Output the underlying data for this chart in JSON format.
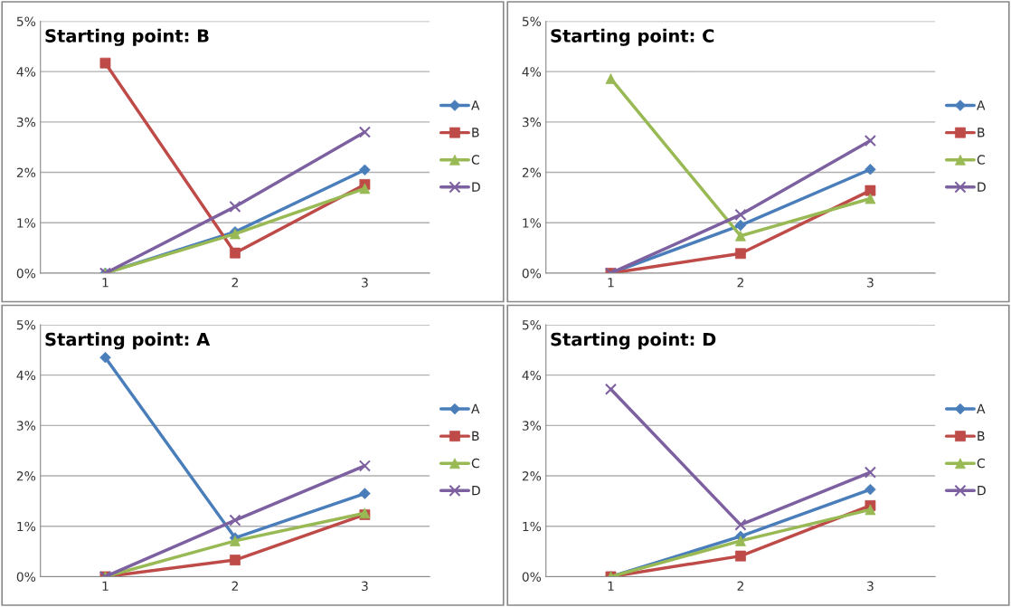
{
  "chart_data": [
    {
      "type": "line",
      "title": "Starting point: B",
      "categories": [
        "1",
        "2",
        "3"
      ],
      "ylim": [
        0,
        5
      ],
      "yticks": [
        {
          "value": 0,
          "label": "0%"
        },
        {
          "value": 1,
          "label": "1%"
        },
        {
          "value": 2,
          "label": "2%"
        },
        {
          "value": 3,
          "label": "3%"
        },
        {
          "value": 4,
          "label": "4%"
        },
        {
          "value": 5,
          "label": "5%"
        }
      ],
      "grid": "y",
      "legend": "right",
      "series": [
        {
          "name": "A",
          "color": "#4a7ebb",
          "marker": "diamond",
          "values": [
            0,
            0.82,
            2.05
          ]
        },
        {
          "name": "B",
          "color": "#be4b48",
          "marker": "square",
          "values": [
            4.17,
            0.4,
            1.76
          ]
        },
        {
          "name": "C",
          "color": "#98b954",
          "marker": "triangle",
          "values": [
            0,
            0.78,
            1.68
          ]
        },
        {
          "name": "D",
          "color": "#7d60a0",
          "marker": "cross",
          "values": [
            0,
            1.32,
            2.8
          ]
        }
      ]
    },
    {
      "type": "line",
      "title": "Starting point: C",
      "categories": [
        "1",
        "2",
        "3"
      ],
      "ylim": [
        0,
        5
      ],
      "yticks": [
        {
          "value": 0,
          "label": "0%"
        },
        {
          "value": 1,
          "label": "1%"
        },
        {
          "value": 2,
          "label": "2%"
        },
        {
          "value": 3,
          "label": "3%"
        },
        {
          "value": 4,
          "label": "4%"
        },
        {
          "value": 5,
          "label": "5%"
        }
      ],
      "grid": "y",
      "legend": "right",
      "series": [
        {
          "name": "A",
          "color": "#4a7ebb",
          "marker": "diamond",
          "values": [
            0,
            0.95,
            2.06
          ]
        },
        {
          "name": "B",
          "color": "#be4b48",
          "marker": "square",
          "values": [
            0,
            0.39,
            1.64
          ]
        },
        {
          "name": "C",
          "color": "#98b954",
          "marker": "triangle",
          "values": [
            3.86,
            0.74,
            1.48
          ]
        },
        {
          "name": "D",
          "color": "#7d60a0",
          "marker": "cross",
          "values": [
            0,
            1.16,
            2.63
          ]
        }
      ]
    },
    {
      "type": "line",
      "title": "Starting point: A",
      "categories": [
        "1",
        "2",
        "3"
      ],
      "ylim": [
        0,
        5
      ],
      "yticks": [
        {
          "value": 0,
          "label": "0%"
        },
        {
          "value": 1,
          "label": "1%"
        },
        {
          "value": 2,
          "label": "2%"
        },
        {
          "value": 3,
          "label": "3%"
        },
        {
          "value": 4,
          "label": "4%"
        },
        {
          "value": 5,
          "label": "5%"
        }
      ],
      "grid": "y",
      "legend": "right",
      "series": [
        {
          "name": "A",
          "color": "#4a7ebb",
          "marker": "diamond",
          "values": [
            4.35,
            0.77,
            1.65
          ]
        },
        {
          "name": "B",
          "color": "#be4b48",
          "marker": "square",
          "values": [
            0,
            0.33,
            1.23
          ]
        },
        {
          "name": "C",
          "color": "#98b954",
          "marker": "triangle",
          "values": [
            0,
            0.71,
            1.26
          ]
        },
        {
          "name": "D",
          "color": "#7d60a0",
          "marker": "cross",
          "values": [
            0,
            1.12,
            2.2
          ]
        }
      ]
    },
    {
      "type": "line",
      "title": "Starting point: D",
      "categories": [
        "1",
        "2",
        "3"
      ],
      "ylim": [
        0,
        5
      ],
      "yticks": [
        {
          "value": 0,
          "label": "0%"
        },
        {
          "value": 1,
          "label": "1%"
        },
        {
          "value": 2,
          "label": "2%"
        },
        {
          "value": 3,
          "label": "3%"
        },
        {
          "value": 4,
          "label": "4%"
        },
        {
          "value": 5,
          "label": "5%"
        }
      ],
      "grid": "y",
      "legend": "right",
      "series": [
        {
          "name": "A",
          "color": "#4a7ebb",
          "marker": "diamond",
          "values": [
            0,
            0.8,
            1.73
          ]
        },
        {
          "name": "B",
          "color": "#be4b48",
          "marker": "square",
          "values": [
            0,
            0.41,
            1.41
          ]
        },
        {
          "name": "C",
          "color": "#98b954",
          "marker": "triangle",
          "values": [
            0,
            0.71,
            1.33
          ]
        },
        {
          "name": "D",
          "color": "#7d60a0",
          "marker": "cross",
          "values": [
            3.72,
            1.03,
            2.07
          ]
        }
      ]
    }
  ]
}
